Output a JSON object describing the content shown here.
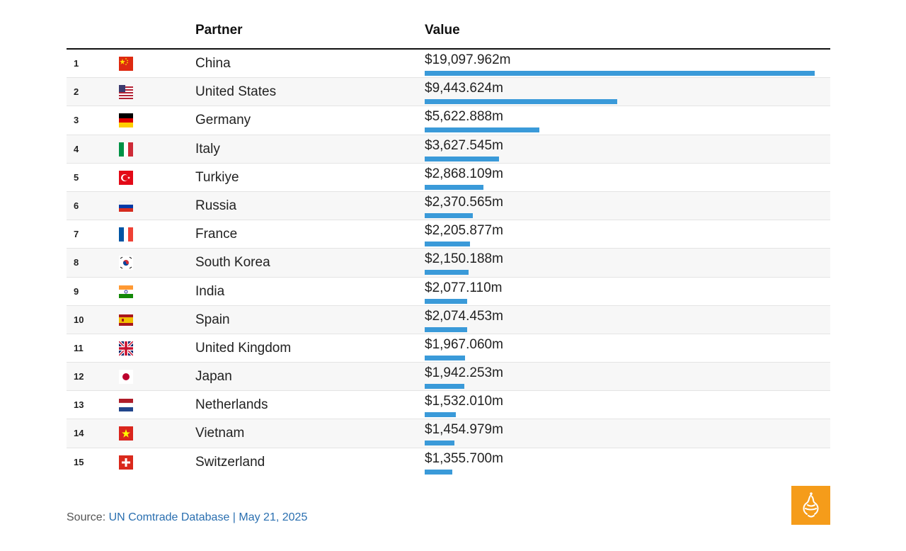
{
  "header": {
    "partner": "Partner",
    "value": "Value"
  },
  "chart_data": {
    "type": "bar",
    "columns": [
      "Partner",
      "Value"
    ],
    "rows": [
      {
        "rank": "1",
        "partner": "China",
        "flag": "china-flag",
        "label": "$19,097.962m",
        "value": 19097.962
      },
      {
        "rank": "2",
        "partner": "United States",
        "flag": "united-states-flag",
        "label": "$9,443.624m",
        "value": 9443.624
      },
      {
        "rank": "3",
        "partner": "Germany",
        "flag": "germany-flag",
        "label": "$5,622.888m",
        "value": 5622.888
      },
      {
        "rank": "4",
        "partner": "Italy",
        "flag": "italy-flag",
        "label": "$3,627.545m",
        "value": 3627.545
      },
      {
        "rank": "5",
        "partner": "Turkiye",
        "flag": "turkiye-flag",
        "label": "$2,868.109m",
        "value": 2868.109
      },
      {
        "rank": "6",
        "partner": "Russia",
        "flag": "russia-flag",
        "label": "$2,370.565m",
        "value": 2370.565
      },
      {
        "rank": "7",
        "partner": "France",
        "flag": "france-flag",
        "label": "$2,205.877m",
        "value": 2205.877
      },
      {
        "rank": "8",
        "partner": "South Korea",
        "flag": "south-korea-flag",
        "label": "$2,150.188m",
        "value": 2150.188
      },
      {
        "rank": "9",
        "partner": "India",
        "flag": "india-flag",
        "label": "$2,077.110m",
        "value": 2077.11
      },
      {
        "rank": "10",
        "partner": "Spain",
        "flag": "spain-flag",
        "label": "$2,074.453m",
        "value": 2074.453
      },
      {
        "rank": "11",
        "partner": "United Kingdom",
        "flag": "united-kingdom-flag",
        "label": "$1,967.060m",
        "value": 1967.06
      },
      {
        "rank": "12",
        "partner": "Japan",
        "flag": "japan-flag",
        "label": "$1,942.253m",
        "value": 1942.253
      },
      {
        "rank": "13",
        "partner": "Netherlands",
        "flag": "netherlands-flag",
        "label": "$1,532.010m",
        "value": 1532.01
      },
      {
        "rank": "14",
        "partner": "Vietnam",
        "flag": "vietnam-flag",
        "label": "$1,454.979m",
        "value": 1454.979
      },
      {
        "rank": "15",
        "partner": "Switzerland",
        "flag": "switzerland-flag",
        "label": "$1,355.700m",
        "value": 1355.7
      }
    ],
    "bar_color": "#3a9ad9"
  },
  "footer": {
    "source_label": "Source: ",
    "source_link": "UN Comtrade Database | May 21, 2025"
  },
  "logo": {
    "icon": "al-jazeera-logo-icon",
    "color": "#f59c1a"
  }
}
